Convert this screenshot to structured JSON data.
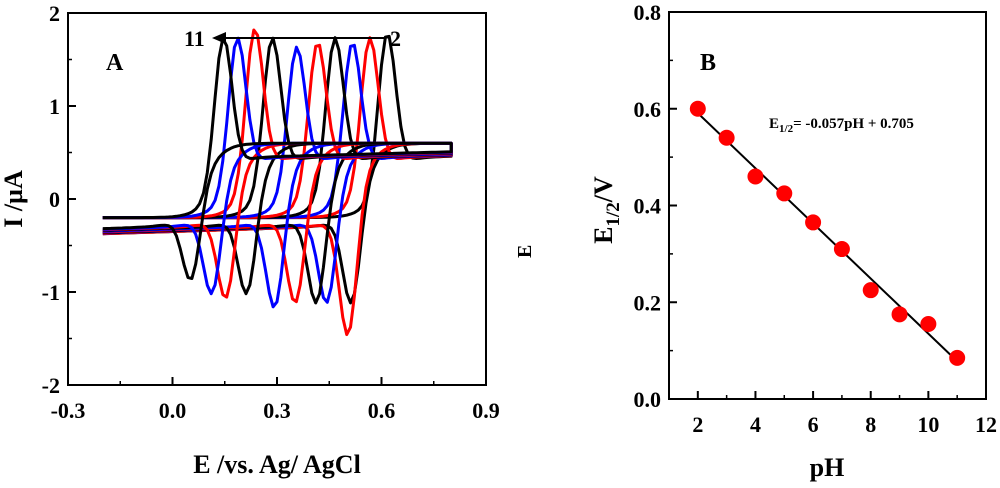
{
  "chart_data": [
    {
      "id": "A",
      "type": "line",
      "panel_label": "A",
      "xlabel": "E /vs. Ag/ AgCl",
      "ylabel": "I /µA",
      "xlim": [
        -0.3,
        0.9
      ],
      "ylim": [
        -2,
        2
      ],
      "xticks": [
        "-0.3",
        "0.0",
        "0.3",
        "0.6",
        "0.9"
      ],
      "yticks": [
        "2",
        "1",
        "0",
        "-1",
        "-2"
      ],
      "grid": false,
      "annotation": {
        "start": "2",
        "end": "11"
      },
      "colors": [
        "#000000",
        "#ff0000",
        "#0000ff"
      ],
      "series": [
        {
          "color": "#000000",
          "Ea": 0.615,
          "Ec": 0.515,
          "ipa": 1.55,
          "ipc": -1.05
        },
        {
          "color": "#ff0000",
          "Ea": 0.565,
          "Ec": 0.505,
          "ipa": 1.5,
          "ipc": -1.4
        },
        {
          "color": "#0000ff",
          "Ea": 0.515,
          "Ec": 0.445,
          "ipa": 1.45,
          "ipc": -1.05
        },
        {
          "color": "#000000",
          "Ea": 0.465,
          "Ec": 0.415,
          "ipa": 1.5,
          "ipc": -1.05
        },
        {
          "color": "#ff0000",
          "Ea": 0.415,
          "Ec": 0.355,
          "ipa": 1.45,
          "ipc": -1.05
        },
        {
          "color": "#0000ff",
          "Ea": 0.355,
          "Ec": 0.295,
          "ipa": 1.4,
          "ipc": -1.1
        },
        {
          "color": "#000000",
          "Ea": 0.285,
          "Ec": 0.215,
          "ipa": 1.5,
          "ipc": -0.95
        },
        {
          "color": "#ff0000",
          "Ea": 0.235,
          "Ec": 0.155,
          "ipa": 1.6,
          "ipc": -1.0
        },
        {
          "color": "#0000ff",
          "Ea": 0.185,
          "Ec": 0.115,
          "ipa": 1.5,
          "ipc": -0.95
        },
        {
          "color": "#000000",
          "Ea": 0.145,
          "Ec": 0.055,
          "ipa": 1.5,
          "ipc": -0.8
        }
      ]
    },
    {
      "id": "B",
      "type": "scatter",
      "panel_label": "B",
      "xlabel": "pH",
      "ylabel": "E1/2/V",
      "ylabel_main": "E",
      "ylabel_sub": "1/2",
      "ylabel_tail": "/V",
      "xlim": [
        1,
        12
      ],
      "ylim": [
        0,
        0.8
      ],
      "xticks": [
        "2",
        "4",
        "6",
        "8",
        "10",
        "12"
      ],
      "yticks": [
        "0.8",
        "0.6",
        "0.4",
        "0.2",
        "0.0"
      ],
      "grid": false,
      "marker_color": "#ff0000",
      "line_color": "#000000",
      "equation": {
        "lhs": "E",
        "sub": "1/2",
        "rhs": "= -0.057pH + 0.705"
      },
      "fit": {
        "slope": -0.057,
        "intercept": 0.705,
        "x_range": [
          2,
          11
        ]
      },
      "x": [
        2,
        3,
        4,
        5,
        6,
        7,
        8,
        9,
        10,
        11
      ],
      "y": [
        0.6,
        0.54,
        0.46,
        0.425,
        0.365,
        0.31,
        0.225,
        0.175,
        0.155,
        0.085
      ]
    }
  ],
  "overlap_label": "E₁/₂/V"
}
